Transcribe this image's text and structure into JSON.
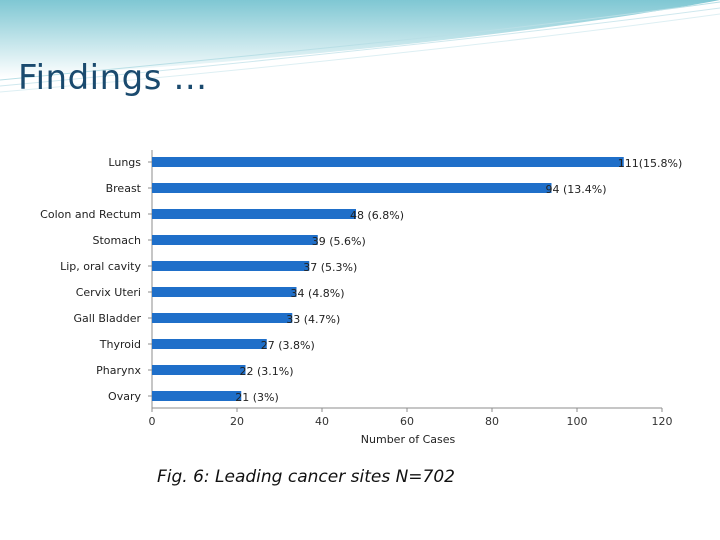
{
  "slide": {
    "title": "Findings …",
    "caption": "Fig. 6: Leading cancer sites N=702"
  },
  "colors": {
    "bar": "#1f6fc9",
    "header_gradient_top": "#7fc7d3",
    "header_gradient_bottom": "#ffffff",
    "title": "#1a4a6e"
  },
  "chart_data": {
    "type": "bar",
    "orientation": "horizontal",
    "title": "",
    "xlabel": "Number of Cases",
    "ylabel": "",
    "xlim": [
      0,
      120
    ],
    "xticks": [
      0,
      20,
      40,
      60,
      80,
      100,
      120
    ],
    "grid": false,
    "categories": [
      "Lungs",
      "Breast",
      "Colon and Rectum",
      "Stomach",
      "Lip, oral cavity",
      "Cervix Uteri",
      "Gall Bladder",
      "Thyroid",
      "Pharynx",
      "Ovary"
    ],
    "values": [
      111,
      94,
      48,
      39,
      37,
      34,
      33,
      27,
      22,
      21
    ],
    "data_labels": [
      "111(15.8%)",
      "94 (13.4%)",
      "48 (6.8%)",
      "39 (5.6%)",
      "37 (5.3%)",
      "34 (4.8%)",
      "33 (4.7%)",
      "27 (3.8%)",
      "22 (3.1%)",
      "21 (3%)"
    ]
  }
}
